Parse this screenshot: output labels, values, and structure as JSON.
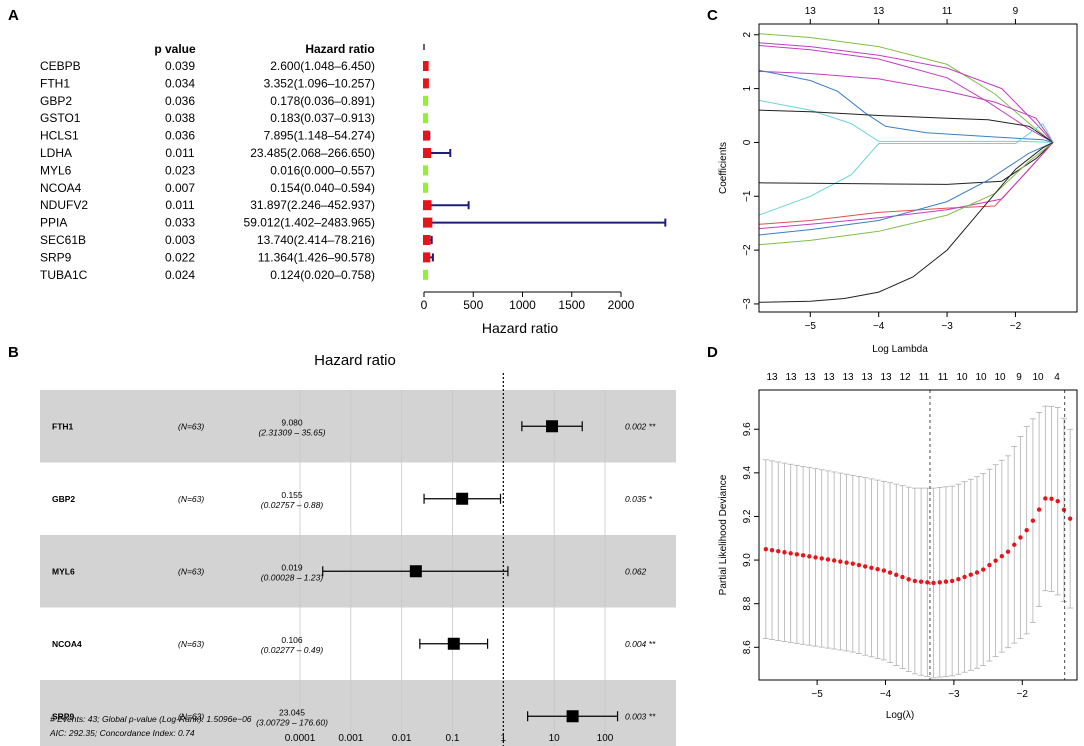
{
  "colors": {
    "red": "#e8141b",
    "green": "#8ef52a",
    "navy": "#1c1f7a",
    "band": "#d3d3d3",
    "ci_grey": "#b0b0b0"
  },
  "panelA": {
    "label": "A",
    "col_p": "p value",
    "col_hr": "Hazard ratio",
    "axis_title": "Hazard ratio",
    "ticks": [
      0,
      500,
      1000,
      1500,
      2000
    ],
    "rows": [
      {
        "gene": "CEBPB",
        "p": "0.039",
        "hr_text": "2.600(1.048–6.450)",
        "hr": 2.6,
        "lo": 1.048,
        "hi": 6.45,
        "color": "red"
      },
      {
        "gene": "FTH1",
        "p": "0.034",
        "hr_text": "3.352(1.096–10.257)",
        "hr": 3.352,
        "lo": 1.096,
        "hi": 10.257,
        "color": "red"
      },
      {
        "gene": "GBP2",
        "p": "0.036",
        "hr_text": "0.178(0.036–0.891)",
        "hr": 0.178,
        "lo": 0.036,
        "hi": 0.891,
        "color": "green"
      },
      {
        "gene": "GSTO1",
        "p": "0.038",
        "hr_text": "0.183(0.037–0.913)",
        "hr": 0.183,
        "lo": 0.037,
        "hi": 0.913,
        "color": "green"
      },
      {
        "gene": "HCLS1",
        "p": "0.036",
        "hr_text": "7.895(1.148–54.274)",
        "hr": 7.895,
        "lo": 1.148,
        "hi": 54.274,
        "color": "red"
      },
      {
        "gene": "LDHA",
        "p": "0.011",
        "hr_text": "23.485(2.068–266.650)",
        "hr": 23.485,
        "lo": 2.068,
        "hi": 266.65,
        "color": "red"
      },
      {
        "gene": "MYL6",
        "p": "0.023",
        "hr_text": "0.016(0.000–0.557)",
        "hr": 0.016,
        "lo": 0.0,
        "hi": 0.557,
        "color": "green"
      },
      {
        "gene": "NCOA4",
        "p": "0.007",
        "hr_text": "0.154(0.040–0.594)",
        "hr": 0.154,
        "lo": 0.04,
        "hi": 0.594,
        "color": "green"
      },
      {
        "gene": "NDUFV2",
        "p": "0.011",
        "hr_text": "31.897(2.246–452.937)",
        "hr": 31.897,
        "lo": 2.246,
        "hi": 452.937,
        "color": "red"
      },
      {
        "gene": "PPIA",
        "p": "0.033",
        "hr_text": "59.012(1.402–2483.965)",
        "hr": 59.012,
        "lo": 1.402,
        "hi": 2483.965,
        "color": "red"
      },
      {
        "gene": "SEC61B",
        "p": "0.003",
        "hr_text": "13.740(2.414–78.216)",
        "hr": 13.74,
        "lo": 2.414,
        "hi": 78.216,
        "color": "red"
      },
      {
        "gene": "SRP9",
        "p": "0.022",
        "hr_text": "11.364(1.426–90.578)",
        "hr": 11.364,
        "lo": 1.426,
        "hi": 90.578,
        "color": "red"
      },
      {
        "gene": "TUBA1C",
        "p": "0.024",
        "hr_text": "0.124(0.020–0.758)",
        "hr": 0.124,
        "lo": 0.02,
        "hi": 0.758,
        "color": "green"
      }
    ]
  },
  "panelB": {
    "label": "B",
    "title": "Hazard ratio",
    "ticks": [
      "0.0001",
      "0.001",
      "0.01",
      "0.1",
      "1",
      "10",
      "100"
    ],
    "footer1": "# Events: 43; Global p-value (Log-Rank): 1.5096e−06",
    "footer2": "AIC: 292.35; Concordance Index: 0.74",
    "rows": [
      {
        "gene": "FTH1",
        "n": "(N=63)",
        "hr_text": "9.080",
        "ci_text": "(2.31309 –  35.65)",
        "p": "0.002 **",
        "hr": 9.08,
        "lo": 2.31309,
        "hi": 35.65
      },
      {
        "gene": "GBP2",
        "n": "(N=63)",
        "hr_text": "0.155",
        "ci_text": "(0.02757 –  0.88)",
        "p": "0.035 *",
        "hr": 0.155,
        "lo": 0.02757,
        "hi": 0.88
      },
      {
        "gene": "MYL6",
        "n": "(N=63)",
        "hr_text": "0.019",
        "ci_text": "(0.00028 –  1.23)",
        "p": "0.062",
        "hr": 0.019,
        "lo": 0.00028,
        "hi": 1.23
      },
      {
        "gene": "NCOA4",
        "n": "(N=63)",
        "hr_text": "0.106",
        "ci_text": "(0.02277 –  0.49)",
        "p": "0.004 **",
        "hr": 0.106,
        "lo": 0.02277,
        "hi": 0.49
      },
      {
        "gene": "SRP9",
        "n": "(N=63)",
        "hr_text": "23.045",
        "ci_text": "(3.00729 – 176.60)",
        "p": "0.003 **",
        "hr": 23.045,
        "lo": 3.00729,
        "hi": 176.6
      }
    ]
  },
  "panelC": {
    "label": "C",
    "xlabel": "Log Lambda",
    "ylabel": "Coefficients",
    "xticks": [
      -5,
      -4,
      -3,
      -2
    ],
    "yticks": [
      -3,
      -2,
      -1,
      0,
      1,
      2
    ],
    "top_ticks": [
      {
        "x": -5,
        "label": "13"
      },
      {
        "x": -4,
        "label": "13"
      },
      {
        "x": -3,
        "label": "11"
      },
      {
        "x": -2,
        "label": "9"
      }
    ],
    "xlim": [
      -5.75,
      -1.1
    ],
    "ylim": [
      -3.15,
      2.2
    ],
    "paths": [
      {
        "color": "#7fbf4a",
        "pts": [
          [
            -5.75,
            2.02
          ],
          [
            -5,
            1.95
          ],
          [
            -4,
            1.78
          ],
          [
            -3,
            1.45
          ],
          [
            -2.3,
            0.9
          ],
          [
            -1.75,
            0.3
          ],
          [
            -1.45,
            0
          ]
        ]
      },
      {
        "color": "#c33ec3",
        "pts": [
          [
            -5.75,
            1.85
          ],
          [
            -5,
            1.78
          ],
          [
            -4,
            1.62
          ],
          [
            -3,
            1.38
          ],
          [
            -2.2,
            1.0
          ],
          [
            -1.7,
            0.35
          ],
          [
            -1.45,
            0
          ]
        ]
      },
      {
        "color": "#c33ec3",
        "pts": [
          [
            -5.75,
            1.8
          ],
          [
            -5,
            1.72
          ],
          [
            -4,
            1.55
          ],
          [
            -3,
            1.2
          ],
          [
            -2.4,
            0.75
          ],
          [
            -1.8,
            0.25
          ],
          [
            -1.45,
            0
          ]
        ]
      },
      {
        "color": "#c33ec3",
        "pts": [
          [
            -5.75,
            1.32
          ],
          [
            -5,
            1.28
          ],
          [
            -4,
            1.18
          ],
          [
            -3,
            0.95
          ],
          [
            -2.3,
            0.75
          ],
          [
            -1.7,
            0.45
          ],
          [
            -1.45,
            0
          ]
        ]
      },
      {
        "color": "#3a7fc8",
        "pts": [
          [
            -5.75,
            1.34
          ],
          [
            -5,
            1.15
          ],
          [
            -4.6,
            0.95
          ],
          [
            -4.2,
            0.55
          ],
          [
            -3.9,
            0.3
          ],
          [
            -3.3,
            0.18
          ],
          [
            -2.3,
            0.1
          ],
          [
            -1.6,
            0.05
          ],
          [
            -1.45,
            0
          ]
        ]
      },
      {
        "color": "#6ad4d8",
        "pts": [
          [
            -5.75,
            0.78
          ],
          [
            -5,
            0.6
          ],
          [
            -4.4,
            0.35
          ],
          [
            -4.0,
            0.02
          ],
          [
            -3,
            0.02
          ],
          [
            -1.9,
            0.02
          ],
          [
            -1.45,
            0
          ]
        ]
      },
      {
        "color": "#222222",
        "pts": [
          [
            -5.75,
            0.6
          ],
          [
            -5,
            0.57
          ],
          [
            -4,
            0.5
          ],
          [
            -3,
            0.45
          ],
          [
            -2.4,
            0.42
          ],
          [
            -1.8,
            0.3
          ],
          [
            -1.45,
            0
          ]
        ]
      },
      {
        "color": "#6ad4d8",
        "pts": [
          [
            -5.75,
            -1.35
          ],
          [
            -5,
            -1.0
          ],
          [
            -4.4,
            -0.6
          ],
          [
            -4.0,
            -0.02
          ],
          [
            -2,
            -0.02
          ],
          [
            -1.6,
            0.35
          ],
          [
            -1.45,
            0
          ]
        ]
      },
      {
        "color": "#222222",
        "pts": [
          [
            -5.75,
            -0.75
          ],
          [
            -5,
            -0.76
          ],
          [
            -4,
            -0.77
          ],
          [
            -3,
            -0.78
          ],
          [
            -2.2,
            -0.72
          ],
          [
            -1.7,
            -0.3
          ],
          [
            -1.45,
            0
          ]
        ]
      },
      {
        "color": "#e05050",
        "pts": [
          [
            -5.75,
            -1.52
          ],
          [
            -5,
            -1.45
          ],
          [
            -4,
            -1.3
          ],
          [
            -3,
            -1.22
          ],
          [
            -2.3,
            -1.18
          ],
          [
            -1.8,
            -0.5
          ],
          [
            -1.45,
            0
          ]
        ]
      },
      {
        "color": "#c33ec3",
        "pts": [
          [
            -5.75,
            -1.6
          ],
          [
            -5,
            -1.52
          ],
          [
            -4,
            -1.4
          ],
          [
            -3,
            -1.25
          ],
          [
            -2.2,
            -1.05
          ],
          [
            -1.7,
            -0.35
          ],
          [
            -1.45,
            0
          ]
        ]
      },
      {
        "color": "#3a7fc8",
        "pts": [
          [
            -5.75,
            -1.72
          ],
          [
            -5,
            -1.62
          ],
          [
            -4,
            -1.45
          ],
          [
            -3,
            -1.1
          ],
          [
            -2.4,
            -0.7
          ],
          [
            -1.8,
            -0.2
          ],
          [
            -1.45,
            0
          ]
        ]
      },
      {
        "color": "#7fbf4a",
        "pts": [
          [
            -5.75,
            -1.9
          ],
          [
            -5,
            -1.82
          ],
          [
            -4,
            -1.65
          ],
          [
            -3,
            -1.35
          ],
          [
            -2.3,
            -0.95
          ],
          [
            -1.8,
            -0.35
          ],
          [
            -1.45,
            0
          ]
        ]
      },
      {
        "color": "#222222",
        "pts": [
          [
            -5.75,
            -2.97
          ],
          [
            -5,
            -2.95
          ],
          [
            -4.5,
            -2.9
          ],
          [
            -4,
            -2.78
          ],
          [
            -3.5,
            -2.5
          ],
          [
            -3,
            -2.0
          ],
          [
            -2.5,
            -1.25
          ],
          [
            -2.0,
            -0.5
          ],
          [
            -1.6,
            -0.1
          ],
          [
            -1.45,
            0
          ]
        ]
      }
    ]
  },
  "panelD": {
    "label": "D",
    "xlabel": "Log(λ)",
    "ylabel": "Partial Likelihood Deviance",
    "xticks": [
      -5,
      -4,
      -3,
      -2
    ],
    "yticks": [
      8.6,
      8.8,
      9.0,
      9.2,
      9.4,
      9.6
    ],
    "top_ticks": [
      "13",
      "13",
      "13",
      "13",
      "13",
      "13",
      "13",
      "12",
      "11",
      "11",
      "10",
      "10",
      "10",
      "9",
      "10",
      "4"
    ],
    "xlim": [
      -5.85,
      -1.2
    ],
    "ylim": [
      8.45,
      9.78
    ],
    "vlines": [
      -3.35,
      -1.38
    ],
    "points": [
      {
        "x": -5.75,
        "y": 9.05,
        "lo": 8.64,
        "hi": 9.46
      },
      {
        "x": -4.5,
        "y": 8.985,
        "lo": 8.58,
        "hi": 9.39
      },
      {
        "x": -4.0,
        "y": 8.95,
        "lo": 8.54,
        "hi": 9.36
      },
      {
        "x": -3.6,
        "y": 8.905,
        "lo": 8.48,
        "hi": 9.33
      },
      {
        "x": -3.3,
        "y": 8.895,
        "lo": 8.46,
        "hi": 9.33
      },
      {
        "x": -3.0,
        "y": 8.905,
        "lo": 8.47,
        "hi": 9.34
      },
      {
        "x": -2.6,
        "y": 8.95,
        "lo": 8.51,
        "hi": 9.39
      },
      {
        "x": -2.2,
        "y": 9.04,
        "lo": 8.6,
        "hi": 9.48
      },
      {
        "x": -1.9,
        "y": 9.15,
        "lo": 8.67,
        "hi": 9.63
      },
      {
        "x": -1.65,
        "y": 9.29,
        "lo": 8.87,
        "hi": 9.71
      },
      {
        "x": -1.48,
        "y": 9.27,
        "lo": 8.84,
        "hi": 9.7
      },
      {
        "x": -1.3,
        "y": 9.19,
        "lo": 8.78,
        "hi": 9.6
      }
    ]
  }
}
